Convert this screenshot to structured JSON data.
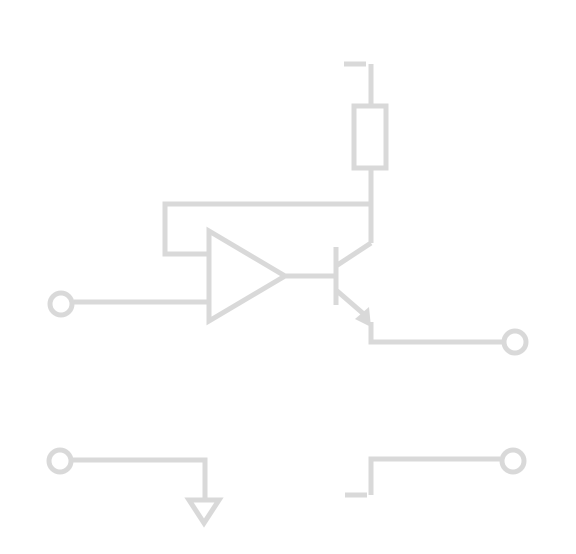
{
  "diagram": {
    "stroke_color": "#d9d9d9",
    "components": [
      {
        "kind": "supply-rail"
      },
      {
        "kind": "resistor"
      },
      {
        "kind": "op-amp"
      },
      {
        "kind": "npn-transistor"
      },
      {
        "kind": "ground"
      },
      {
        "kind": "terminal",
        "count": 4
      }
    ]
  }
}
